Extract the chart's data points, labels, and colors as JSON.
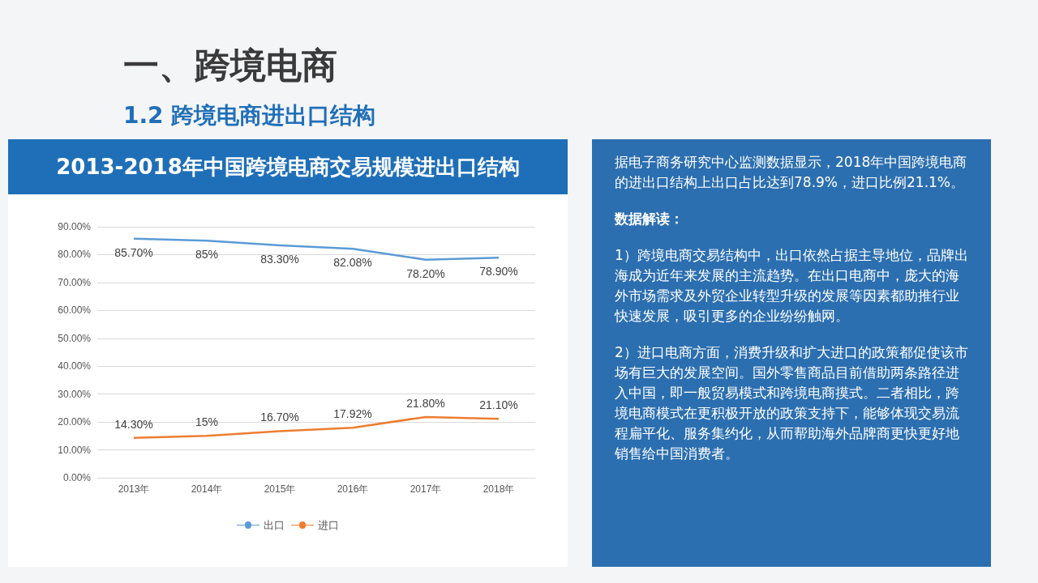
{
  "chart_data": [
    {
      "type": "line",
      "title": "2013-2018年中国跨境电商交易规模进出口结构",
      "categories": [
        "2013年",
        "2014年",
        "2015年",
        "2016年",
        "2017年",
        "2018年"
      ],
      "series": [
        {
          "name": "出口",
          "color": "#5b9bd5",
          "values": [
            85.7,
            85,
            83.3,
            82.08,
            78.2,
            78.9
          ],
          "value_labels": [
            "85.70%",
            "85%",
            "83.30%",
            "82.08%",
            "78.20%",
            "78.90%"
          ]
        },
        {
          "name": "进口",
          "color": "#ed7d31",
          "values": [
            14.3,
            15,
            16.7,
            17.92,
            21.8,
            21.1
          ],
          "value_labels": [
            "14.30%",
            "15%",
            "16.70%",
            "17.92%",
            "21.80%",
            "21.10%"
          ]
        }
      ],
      "ylim": [
        0,
        90
      ],
      "yticks": [
        {
          "value": 0,
          "label": "0.00%"
        },
        {
          "value": 10,
          "label": "10.00%"
        },
        {
          "value": 20,
          "label": "20.00%"
        },
        {
          "value": 30,
          "label": "30.00%"
        },
        {
          "value": 40,
          "label": "40.00%"
        },
        {
          "value": 50,
          "label": "50.00%"
        },
        {
          "value": 60,
          "label": "60.00%"
        },
        {
          "value": 70,
          "label": "70.00%"
        },
        {
          "value": 80,
          "label": "80.00%"
        },
        {
          "value": 90,
          "label": "90.00%"
        }
      ],
      "grid": "y",
      "legend": "bottom",
      "line_style": "solid"
    },
    {
      "type": "other",
      "title": "一、跨境电商",
      "subtitle": "1.2 跨境电商进出口结构",
      "annotations": [
        "据电子商务研究中心监测数据显示，2018年中国跨境电商的进出口结构上出口占比达到78.9%，进口比例21.1%。",
        "数据解读：",
        "1）跨境电商交易结构中，出口依然占据主导地位，品牌出海成为近年来发展的主流趋势。在出口电商中，庞大的海外市场需求及外贸企业转型升级的发展等因素都助推行业快速发展，吸引更多的企业纷纷触网。",
        "2）进口电商方面，消费升级和扩大进口的政策都促使该市场有巨大的发展空间。国外零售商品目前借助两条路径进入中国，即一般贸易模式和跨境电商摸式。二者相比，跨境电商模式在更积极开放的政策支持下，能够体现交易流程扁平化、服务集约化，从而帮助海外品牌商更快更好地销售给中国消费者。"
      ]
    }
  ]
}
